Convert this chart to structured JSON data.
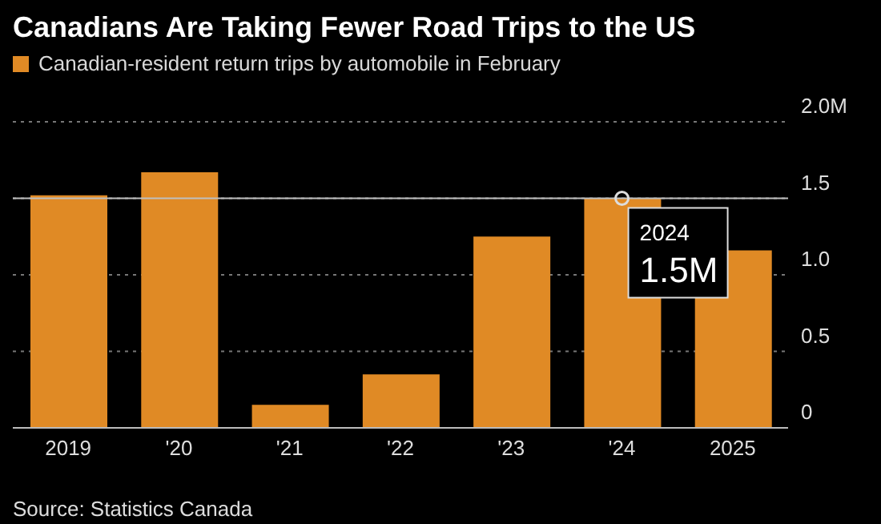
{
  "chart_data": {
    "type": "bar",
    "title": "Canadians Are Taking Fewer Road Trips to the US",
    "categories": [
      "2019",
      "'20",
      "'21",
      "'22",
      "'23",
      "'24",
      "2025"
    ],
    "series": [
      {
        "name": "Canadian-resident return trips by automobile in February",
        "color": "#e08a25",
        "values": [
          1.52,
          1.67,
          0.15,
          0.35,
          1.25,
          1.5,
          1.16
        ]
      }
    ],
    "ylim": [
      0,
      2
    ],
    "yticks": [
      0,
      0.5,
      {
        "value": 1,
        "label": "1.0"
      },
      1.5,
      {
        "value": 2,
        "label": "2.0M"
      }
    ],
    "grid": "y",
    "legend": "top left",
    "ref_lines": [
      {
        "axis": "y",
        "value": 1.5,
        "label": null,
        "color": "#bfbfbf"
      }
    ],
    "annotations": [
      {
        "text": "2024\n1.5M",
        "x": "'24",
        "y": 1.5
      },
      "Source: Statistics Canada"
    ]
  }
}
